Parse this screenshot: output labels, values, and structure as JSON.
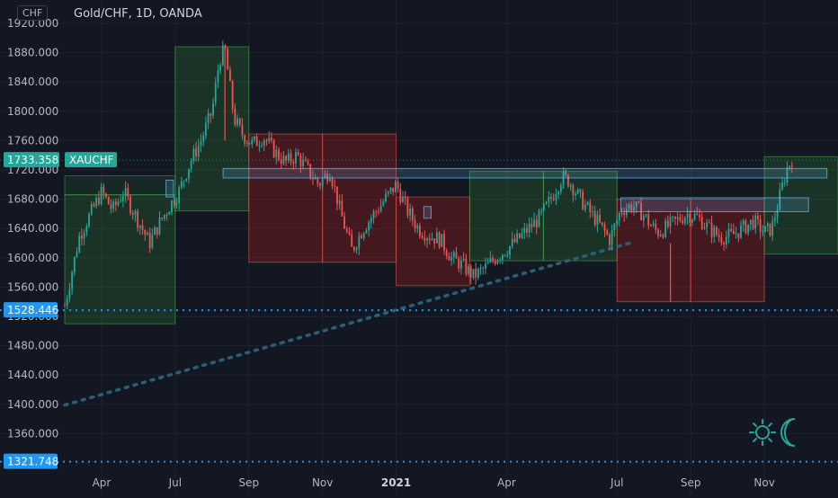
{
  "header": {
    "currency": "CHF",
    "title": "Gold/CHF, 1D, OANDA"
  },
  "colors": {
    "background": "#131722",
    "grid": "#1f2330",
    "axis_text": "#b2b5be",
    "candle_up": "#26a69a",
    "candle_down": "#ef5350",
    "zone_green": "#2e7d32",
    "zone_red": "#b71c1c",
    "resistance_blue": "#64b5f6",
    "dotted_line": "#2a5f78",
    "price_label": "#26a69a",
    "level_label": "#2196f3",
    "logo": "#26a69a"
  },
  "icons": {
    "logo": "sun-moon-logo-icon"
  },
  "chart_data": {
    "type": "candlestick",
    "symbol": "XAUCHF",
    "ylim": [
      1310,
      1930
    ],
    "y_ticks": [
      1360,
      1400,
      1440,
      1480,
      1520,
      1560,
      1600,
      1640,
      1680,
      1720,
      1760,
      1800,
      1840,
      1880,
      1920
    ],
    "y_tick_labels": [
      "1360.000",
      "1400.000",
      "1440.000",
      "1480.000",
      "1520.000",
      "1560.000",
      "1600.000",
      "1640.000",
      "1680.000",
      "1720.000",
      "1760.000",
      "1800.000",
      "1840.000",
      "1880.000",
      "1920.000"
    ],
    "x_labels": [
      {
        "month": 4.0,
        "text": "Apr"
      },
      {
        "month": 6.0,
        "text": "Jul"
      },
      {
        "month": 8.0,
        "text": "Sep"
      },
      {
        "month": 10.0,
        "text": "Nov"
      },
      {
        "month": 12.0,
        "text": "2021",
        "bold": true
      },
      {
        "month": 15.0,
        "text": "Apr"
      },
      {
        "month": 18.0,
        "text": "Jul"
      },
      {
        "month": 20.0,
        "text": "Sep"
      },
      {
        "month": 22.0,
        "text": "Nov"
      }
    ],
    "xlim": [
      3.0,
      24.0
    ],
    "price_path": [
      [
        3.0,
        1535
      ],
      [
        3.4,
        1630
      ],
      [
        3.7,
        1660
      ],
      [
        4.0,
        1690
      ],
      [
        4.3,
        1665
      ],
      [
        4.6,
        1690
      ],
      [
        5.0,
        1650
      ],
      [
        5.3,
        1620
      ],
      [
        5.6,
        1650
      ],
      [
        5.9,
        1675
      ],
      [
        6.1,
        1690
      ],
      [
        6.4,
        1730
      ],
      [
        6.7,
        1760
      ],
      [
        7.0,
        1800
      ],
      [
        7.2,
        1870
      ],
      [
        7.35,
        1885
      ],
      [
        7.6,
        1790
      ],
      [
        7.8,
        1770
      ],
      [
        8.1,
        1755
      ],
      [
        8.4,
        1765
      ],
      [
        8.7,
        1745
      ],
      [
        9.0,
        1730
      ],
      [
        9.3,
        1740
      ],
      [
        9.6,
        1720
      ],
      [
        9.9,
        1700
      ],
      [
        10.2,
        1720
      ],
      [
        10.5,
        1660
      ],
      [
        10.8,
        1610
      ],
      [
        11.1,
        1640
      ],
      [
        11.4,
        1660
      ],
      [
        11.7,
        1680
      ],
      [
        12.0,
        1700
      ],
      [
        12.3,
        1665
      ],
      [
        12.6,
        1640
      ],
      [
        12.9,
        1630
      ],
      [
        13.2,
        1625
      ],
      [
        13.5,
        1600
      ],
      [
        13.8,
        1590
      ],
      [
        14.1,
        1575
      ],
      [
        14.4,
        1585
      ],
      [
        14.7,
        1600
      ],
      [
        15.0,
        1612
      ],
      [
        15.3,
        1625
      ],
      [
        15.6,
        1640
      ],
      [
        15.9,
        1655
      ],
      [
        16.2,
        1680
      ],
      [
        16.5,
        1710
      ],
      [
        16.7,
        1705
      ],
      [
        17.0,
        1680
      ],
      [
        17.3,
        1660
      ],
      [
        17.6,
        1640
      ],
      [
        17.8,
        1625
      ],
      [
        18.1,
        1665
      ],
      [
        18.4,
        1672
      ],
      [
        18.7,
        1660
      ],
      [
        18.9,
        1645
      ],
      [
        19.1,
        1635
      ],
      [
        19.3,
        1640
      ],
      [
        19.6,
        1650
      ],
      [
        19.9,
        1660
      ],
      [
        20.2,
        1655
      ],
      [
        20.5,
        1640
      ],
      [
        20.8,
        1628
      ],
      [
        21.1,
        1630
      ],
      [
        21.4,
        1640
      ],
      [
        21.7,
        1650
      ],
      [
        22.0,
        1635
      ],
      [
        22.2,
        1640
      ],
      [
        22.4,
        1680
      ],
      [
        22.6,
        1720
      ],
      [
        22.75,
        1735
      ]
    ],
    "zones": [
      {
        "x0": 3.0,
        "x1": 6.0,
        "y0": 1510,
        "y1": 1686,
        "color": "green"
      },
      {
        "x0": 3.0,
        "x1": 6.0,
        "y0": 1686,
        "y1": 1712,
        "color": "green_light"
      },
      {
        "x0": 6.0,
        "x1": 8.0,
        "y0": 1664,
        "y1": 1888,
        "color": "green"
      },
      {
        "x0": 8.0,
        "x1": 10.0,
        "y0": 1594,
        "y1": 1769,
        "color": "red"
      },
      {
        "x0": 10.0,
        "x1": 12.0,
        "y0": 1594,
        "y1": 1769,
        "color": "red"
      },
      {
        "x0": 12.0,
        "x1": 14.0,
        "y0": 1562,
        "y1": 1683,
        "color": "red"
      },
      {
        "x0": 14.0,
        "x1": 16.0,
        "y0": 1596,
        "y1": 1718,
        "color": "green"
      },
      {
        "x0": 16.0,
        "x1": 18.0,
        "y0": 1596,
        "y1": 1718,
        "color": "green"
      },
      {
        "x0": 18.0,
        "x1": 20.0,
        "y0": 1540,
        "y1": 1680,
        "color": "red"
      },
      {
        "x0": 20.0,
        "x1": 22.0,
        "y0": 1540,
        "y1": 1680,
        "color": "red"
      },
      {
        "x0": 22.0,
        "x1": 24.0,
        "y0": 1605,
        "y1": 1738,
        "color": "green"
      }
    ],
    "resistance_boxes": [
      {
        "x0": 7.3,
        "x1": 23.7,
        "y0": 1709,
        "y1": 1722
      },
      {
        "x0": 18.1,
        "x1": 23.2,
        "y0": 1663,
        "y1": 1682
      },
      {
        "x0": 5.75,
        "x1": 5.95,
        "y0": 1683,
        "y1": 1706
      },
      {
        "x0": 12.75,
        "x1": 12.95,
        "y0": 1654,
        "y1": 1670
      }
    ],
    "trend_line": {
      "x0": 3.0,
      "x1": 18.4,
      "y0": 1399,
      "y1": 1621
    },
    "horizontal_levels": [
      {
        "y": 1528.446,
        "label": "1528.446",
        "color": "level"
      },
      {
        "y": 1321.748,
        "label": "1321.748",
        "color": "level"
      }
    ],
    "last_price": {
      "y": 1733.358,
      "label": "1733.358",
      "symbol": "XAUCHF"
    }
  }
}
